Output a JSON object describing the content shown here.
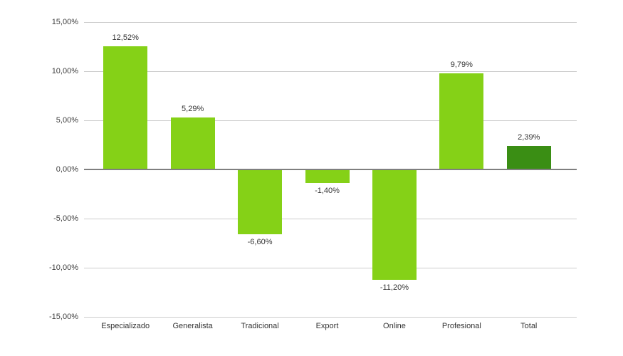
{
  "chart_data": {
    "type": "bar",
    "title": "",
    "xlabel": "",
    "ylabel": "",
    "categories": [
      "Especializado",
      "Generalista",
      "Tradicional",
      "Export",
      "Online",
      "Profesional",
      "Total"
    ],
    "values": [
      12.52,
      5.29,
      -6.6,
      -1.4,
      -11.2,
      9.79,
      2.39
    ],
    "value_labels": [
      "12,52%",
      "5,29%",
      "-6,60%",
      "-1,40%",
      "-11,20%",
      "9,79%",
      "2,39%"
    ],
    "bar_colors": [
      "#85d117",
      "#85d117",
      "#85d117",
      "#85d117",
      "#85d117",
      "#85d117",
      "#3a8e14"
    ],
    "y_ticks": [
      {
        "value": 15,
        "label": "15,00%"
      },
      {
        "value": 10,
        "label": "10,00%"
      },
      {
        "value": 5,
        "label": "5,00%"
      },
      {
        "value": 0,
        "label": "0,00%"
      },
      {
        "value": -5,
        "label": "-5,00%"
      },
      {
        "value": -10,
        "label": "-10,00%"
      },
      {
        "value": -15,
        "label": "-15,00%"
      }
    ],
    "ylim": [
      -15,
      15
    ],
    "grid": true,
    "legend": "none",
    "colors": {
      "bar_default": "#85d117",
      "bar_total": "#3a8e14",
      "gridline": "#cccccc",
      "zero_line": "#7f7f7f",
      "tick_text": "#404040",
      "label_text": "#333333",
      "background": "#ffffff"
    }
  }
}
